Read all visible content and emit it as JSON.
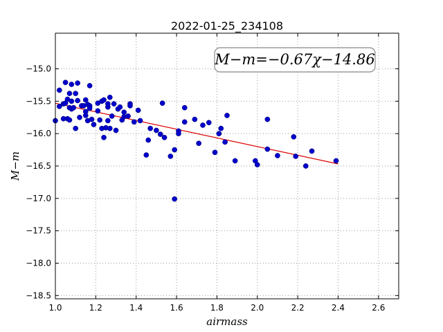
{
  "colors": {
    "points": "#0000cc",
    "fit_line": "#dd0000",
    "grid": "#999999",
    "frame": "#000000"
  },
  "chart_data": {
    "type": "scatter",
    "title": "2022-01-25_234108",
    "xlabel": "airmass",
    "ylabel": "M−m",
    "annotation": "M−m=−0.67χ−14.86",
    "xlim": [
      1.0,
      2.7
    ],
    "ylim": [
      -18.55,
      -14.45
    ],
    "y_inverted": true,
    "grid": true,
    "x_ticks": [
      1.0,
      1.2,
      1.4,
      1.6,
      1.8,
      2.0,
      2.2,
      2.4,
      2.6
    ],
    "x_tick_labels": [
      "1.0",
      "1.2",
      "1.4",
      "1.6",
      "1.8",
      "2.0",
      "2.2",
      "2.4",
      "2.6"
    ],
    "y_ticks": [
      -15.0,
      -15.5,
      -16.0,
      -16.5,
      -17.0,
      -17.5,
      -18.0,
      -18.5
    ],
    "y_tick_labels": [
      "−15.0",
      "−15.5",
      "−16.0",
      "−16.5",
      "−17.0",
      "−17.5",
      "−18.0",
      "−18.5"
    ],
    "fit": {
      "slope": -0.67,
      "intercept": -14.86,
      "x_range": [
        1.0,
        2.4
      ]
    },
    "points": [
      {
        "x": 1.0,
        "y": -15.8
      },
      {
        "x": 1.02,
        "y": -15.33
      },
      {
        "x": 1.02,
        "y": -15.58
      },
      {
        "x": 1.04,
        "y": -15.54
      },
      {
        "x": 1.04,
        "y": -15.77
      },
      {
        "x": 1.05,
        "y": -15.21
      },
      {
        "x": 1.05,
        "y": -15.53
      },
      {
        "x": 1.06,
        "y": -15.77
      },
      {
        "x": 1.06,
        "y": -15.47
      },
      {
        "x": 1.07,
        "y": -15.38
      },
      {
        "x": 1.07,
        "y": -15.6
      },
      {
        "x": 1.07,
        "y": -15.79
      },
      {
        "x": 1.08,
        "y": -15.24
      },
      {
        "x": 1.08,
        "y": -15.5
      },
      {
        "x": 1.08,
        "y": -15.62
      },
      {
        "x": 1.09,
        "y": -15.6
      },
      {
        "x": 1.1,
        "y": -15.38
      },
      {
        "x": 1.1,
        "y": -15.92
      },
      {
        "x": 1.11,
        "y": -15.22
      },
      {
        "x": 1.11,
        "y": -15.49
      },
      {
        "x": 1.12,
        "y": -15.75
      },
      {
        "x": 1.13,
        "y": -15.57
      },
      {
        "x": 1.14,
        "y": -15.57
      },
      {
        "x": 1.15,
        "y": -15.48
      },
      {
        "x": 1.15,
        "y": -15.66
      },
      {
        "x": 1.15,
        "y": -15.72
      },
      {
        "x": 1.16,
        "y": -15.8
      },
      {
        "x": 1.16,
        "y": -15.55
      },
      {
        "x": 1.17,
        "y": -15.26
      },
      {
        "x": 1.17,
        "y": -15.57
      },
      {
        "x": 1.17,
        "y": -15.61
      },
      {
        "x": 1.18,
        "y": -15.78
      },
      {
        "x": 1.19,
        "y": -15.86
      },
      {
        "x": 1.21,
        "y": -15.53
      },
      {
        "x": 1.21,
        "y": -15.65
      },
      {
        "x": 1.22,
        "y": -15.79
      },
      {
        "x": 1.23,
        "y": -15.5
      },
      {
        "x": 1.23,
        "y": -15.92
      },
      {
        "x": 1.24,
        "y": -15.48
      },
      {
        "x": 1.24,
        "y": -16.06
      },
      {
        "x": 1.25,
        "y": -15.91
      },
      {
        "x": 1.26,
        "y": -15.8
      },
      {
        "x": 1.26,
        "y": -15.59
      },
      {
        "x": 1.26,
        "y": -15.54
      },
      {
        "x": 1.27,
        "y": -15.44
      },
      {
        "x": 1.27,
        "y": -15.92
      },
      {
        "x": 1.28,
        "y": -15.73
      },
      {
        "x": 1.29,
        "y": -15.54
      },
      {
        "x": 1.3,
        "y": -15.95
      },
      {
        "x": 1.31,
        "y": -15.62
      },
      {
        "x": 1.32,
        "y": -15.59
      },
      {
        "x": 1.33,
        "y": -15.79
      },
      {
        "x": 1.34,
        "y": -15.67
      },
      {
        "x": 1.34,
        "y": -15.74
      },
      {
        "x": 1.36,
        "y": -15.73
      },
      {
        "x": 1.37,
        "y": -15.54
      },
      {
        "x": 1.37,
        "y": -15.57
      },
      {
        "x": 1.39,
        "y": -15.82
      },
      {
        "x": 1.41,
        "y": -15.64
      },
      {
        "x": 1.42,
        "y": -15.8
      },
      {
        "x": 1.45,
        "y": -16.33
      },
      {
        "x": 1.46,
        "y": -16.1
      },
      {
        "x": 1.47,
        "y": -15.92
      },
      {
        "x": 1.5,
        "y": -15.95
      },
      {
        "x": 1.52,
        "y": -16.01
      },
      {
        "x": 1.53,
        "y": -15.53
      },
      {
        "x": 1.54,
        "y": -16.06
      },
      {
        "x": 1.57,
        "y": -16.35
      },
      {
        "x": 1.59,
        "y": -17.01
      },
      {
        "x": 1.59,
        "y": -16.25
      },
      {
        "x": 1.61,
        "y": -15.96
      },
      {
        "x": 1.61,
        "y": -16.0
      },
      {
        "x": 1.64,
        "y": -15.6
      },
      {
        "x": 1.64,
        "y": -15.82
      },
      {
        "x": 1.69,
        "y": -15.78
      },
      {
        "x": 1.71,
        "y": -16.15
      },
      {
        "x": 1.73,
        "y": -15.87
      },
      {
        "x": 1.76,
        "y": -15.83
      },
      {
        "x": 1.79,
        "y": -16.29
      },
      {
        "x": 1.81,
        "y": -16.0
      },
      {
        "x": 1.82,
        "y": -15.92
      },
      {
        "x": 1.84,
        "y": -16.13
      },
      {
        "x": 1.85,
        "y": -15.72
      },
      {
        "x": 1.89,
        "y": -16.42
      },
      {
        "x": 1.99,
        "y": -16.42
      },
      {
        "x": 2.0,
        "y": -16.48
      },
      {
        "x": 2.05,
        "y": -16.24
      },
      {
        "x": 2.05,
        "y": -15.78
      },
      {
        "x": 2.1,
        "y": -16.34
      },
      {
        "x": 2.18,
        "y": -16.05
      },
      {
        "x": 2.19,
        "y": -16.35
      },
      {
        "x": 2.24,
        "y": -16.5
      },
      {
        "x": 2.27,
        "y": -16.27
      },
      {
        "x": 2.39,
        "y": -16.42
      }
    ]
  }
}
